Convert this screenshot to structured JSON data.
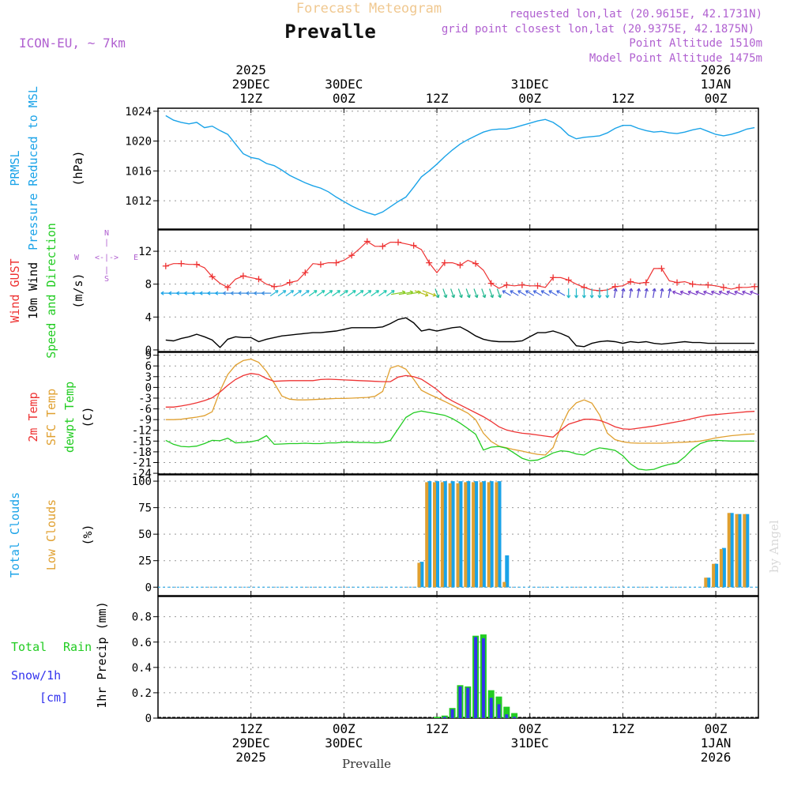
{
  "header": {
    "subtitle": "Forecast Meteogram",
    "station": "Prevalle",
    "model": "ICON-EU, ~ 7km",
    "requested": "requested lon,lat (20.9615E, 42.1731N)",
    "gridpoint": "grid point closest lon,lat (20.9375E, 42.1875N)",
    "altitude": "Point Altitude 1510m",
    "model_altitude": "Model Point Altitude 1475m",
    "footer_station": "Prevalle",
    "watermark": "by Angel"
  },
  "colors": {
    "pressure": "#1aa3e8",
    "gust": "#ee3333",
    "wind": "#000000",
    "temp": "#ee3333",
    "sfc": "#e0a030",
    "dew": "#22cc22",
    "total_cloud": "#1aa3e8",
    "low_cloud": "#e0a030",
    "rain": "#22cc22",
    "snow": "#3333ee",
    "label_purple": "#b060d0"
  },
  "time_axis": {
    "top_labels": [
      {
        "lines": [
          "2025",
          "29DEC",
          "12Z"
        ]
      },
      {
        "lines": [
          "30DEC",
          "00Z"
        ]
      },
      {
        "lines": [
          "12Z"
        ]
      },
      {
        "lines": [
          "31DEC",
          "00Z"
        ]
      },
      {
        "lines": [
          "12Z"
        ]
      },
      {
        "lines": [
          "2026",
          "1JAN",
          "00Z"
        ]
      }
    ],
    "bottom_labels": [
      {
        "lines": [
          "12Z",
          "29DEC",
          "2025"
        ]
      },
      {
        "lines": [
          "00Z",
          "30DEC"
        ]
      },
      {
        "lines": [
          "12Z"
        ]
      },
      {
        "lines": [
          "00Z",
          "31DEC"
        ]
      },
      {
        "lines": [
          "12Z"
        ]
      },
      {
        "lines": [
          "00Z",
          "1JAN",
          "2026"
        ]
      }
    ],
    "tick_hours": [
      12,
      24,
      36,
      48,
      60,
      72
    ]
  },
  "panel_labels": {
    "pressure": [
      "PRMSL",
      "Pressure Reduced to MSL",
      "(hPa)"
    ],
    "wind": [
      "Wind GUST",
      "10m Wind",
      "Speed and Direction",
      "(m/s)"
    ],
    "compass": {
      "n": "N",
      "s": "S",
      "w": "W",
      "e": "E",
      "arrows": "<-|->",
      "vbar": "|"
    },
    "temp": [
      "2m Temp",
      "SFC Temp",
      "dewpt Temp",
      "(C)"
    ],
    "cloud": [
      "Total Clouds",
      "Low Clouds",
      "(%)"
    ],
    "precip": [
      "Total",
      "Rain",
      "Snow/1h",
      "[cm]",
      "1hr Precip (mm)"
    ]
  },
  "chart_data": [
    {
      "type": "line",
      "title": "Pressure Reduced to MSL",
      "ylabel": "(hPa)",
      "ylim": [
        1008.2,
        1024.4
      ],
      "yticks": [
        "1012",
        "1016",
        "1020",
        "1024"
      ],
      "x_hours": [
        1,
        2,
        3,
        4,
        5,
        6,
        7,
        8,
        9,
        10,
        11,
        12,
        13,
        14,
        15,
        16,
        17,
        18,
        19,
        20,
        21,
        22,
        23,
        24,
        25,
        26,
        27,
        28,
        29,
        30,
        31,
        32,
        33,
        34,
        35,
        36,
        37,
        38,
        39,
        40,
        41,
        42,
        43,
        44,
        45,
        46,
        47,
        48,
        49,
        50,
        51,
        52,
        53,
        54,
        55,
        56,
        57,
        58,
        59,
        60,
        61,
        62,
        63,
        64,
        65,
        66,
        67,
        68,
        69,
        70,
        71,
        72,
        73,
        74,
        75,
        76,
        77
      ],
      "series": [
        {
          "name": "PRMSL",
          "values": [
            1023.4,
            1022.8,
            1022.5,
            1022.3,
            1022.5,
            1021.8,
            1022.0,
            1021.4,
            1020.9,
            1019.6,
            1018.3,
            1017.8,
            1017.6,
            1017.0,
            1016.7,
            1016.1,
            1015.4,
            1014.9,
            1014.4,
            1014.0,
            1013.7,
            1013.2,
            1012.5,
            1011.9,
            1011.3,
            1010.8,
            1010.4,
            1010.1,
            1010.5,
            1011.2,
            1011.9,
            1012.5,
            1013.8,
            1015.2,
            1016.0,
            1016.9,
            1017.9,
            1018.8,
            1019.6,
            1020.2,
            1020.7,
            1021.2,
            1021.5,
            1021.6,
            1021.6,
            1021.8,
            1022.1,
            1022.4,
            1022.7,
            1022.9,
            1022.5,
            1021.8,
            1020.8,
            1020.3,
            1020.5,
            1020.6,
            1020.7,
            1021.1,
            1021.7,
            1022.1,
            1022.1,
            1021.7,
            1021.4,
            1021.2,
            1021.3,
            1021.1,
            1021.0,
            1021.2,
            1021.5,
            1021.7,
            1021.3,
            1020.9,
            1020.7,
            1020.9,
            1021.2,
            1021.6,
            1021.8
          ]
        }
      ]
    },
    {
      "type": "line",
      "title": "Wind GUST / 10m Wind Speed and Direction",
      "ylabel": "(m/s)",
      "ylim": [
        -0.2,
        14.6
      ],
      "yticks": [
        "0",
        "4",
        "8",
        "12"
      ],
      "x_hours": [
        1,
        2,
        3,
        4,
        5,
        6,
        7,
        8,
        9,
        10,
        11,
        12,
        13,
        14,
        15,
        16,
        17,
        18,
        19,
        20,
        21,
        22,
        23,
        24,
        25,
        26,
        27,
        28,
        29,
        30,
        31,
        32,
        33,
        34,
        35,
        36,
        37,
        38,
        39,
        40,
        41,
        42,
        43,
        44,
        45,
        46,
        47,
        48,
        49,
        50,
        51,
        52,
        53,
        54,
        55,
        56,
        57,
        58,
        59,
        60,
        61,
        62,
        63,
        64,
        65,
        66,
        67,
        68,
        69,
        70,
        71,
        72,
        73,
        74,
        75,
        76,
        77
      ],
      "series": [
        {
          "name": "Wind GUST",
          "values": [
            10.2,
            10.5,
            10.5,
            10.4,
            10.4,
            10.0,
            8.9,
            8.1,
            7.6,
            8.6,
            9.0,
            8.8,
            8.6,
            8.0,
            7.7,
            7.8,
            8.2,
            8.4,
            9.4,
            10.5,
            10.4,
            10.6,
            10.6,
            10.9,
            11.5,
            12.3,
            13.2,
            12.6,
            12.6,
            13.1,
            13.1,
            12.9,
            12.7,
            12.2,
            10.6,
            9.4,
            10.6,
            10.6,
            10.3,
            10.9,
            10.5,
            9.7,
            8.1,
            7.5,
            7.9,
            7.8,
            7.9,
            7.8,
            7.8,
            7.6,
            8.8,
            8.8,
            8.5,
            8.0,
            7.6,
            7.3,
            7.2,
            7.3,
            7.7,
            7.8,
            8.3,
            8.1,
            8.2,
            9.9,
            9.9,
            8.4,
            8.2,
            8.3,
            8.0,
            7.9,
            7.9,
            7.8,
            7.6,
            7.4,
            7.6,
            7.6,
            7.7
          ]
        },
        {
          "name": "10m Wind",
          "values": [
            1.2,
            1.1,
            1.4,
            1.6,
            1.9,
            1.6,
            1.2,
            0.3,
            1.3,
            1.6,
            1.5,
            1.5,
            1.0,
            1.3,
            1.5,
            1.7,
            1.8,
            1.9,
            2.0,
            2.1,
            2.1,
            2.2,
            2.3,
            2.5,
            2.7,
            2.7,
            2.7,
            2.7,
            2.8,
            3.2,
            3.7,
            3.9,
            3.3,
            2.3,
            2.5,
            2.3,
            2.5,
            2.7,
            2.8,
            2.3,
            1.7,
            1.3,
            1.1,
            1.0,
            1.0,
            1.0,
            1.1,
            1.6,
            2.1,
            2.1,
            2.3,
            2.0,
            1.6,
            0.5,
            0.4,
            0.8,
            1.0,
            1.1,
            1.0,
            0.8,
            1.0,
            0.9,
            1.0,
            0.8,
            0.7,
            0.8,
            0.9,
            1.0,
            0.9,
            0.9,
            0.8,
            0.8,
            0.8,
            0.8,
            0.8,
            0.8,
            0.8
          ]
        }
      ]
    },
    {
      "type": "line",
      "title": "2m Temp / SFC Temp / dewpt Temp",
      "ylabel": "(C)",
      "ylim": [
        -24.2,
        9.8
      ],
      "yticks": [
        "-24",
        "-21",
        "-18",
        "-15",
        "-12",
        "-9",
        "-6",
        "-3",
        "0",
        "3",
        "6",
        "9"
      ],
      "x_hours": [
        1,
        2,
        3,
        4,
        5,
        6,
        7,
        8,
        9,
        10,
        11,
        12,
        13,
        14,
        15,
        16,
        17,
        18,
        19,
        20,
        21,
        22,
        23,
        24,
        25,
        26,
        27,
        28,
        29,
        30,
        31,
        32,
        33,
        34,
        35,
        36,
        37,
        38,
        39,
        40,
        41,
        42,
        43,
        44,
        45,
        46,
        47,
        48,
        49,
        50,
        51,
        52,
        53,
        54,
        55,
        56,
        57,
        58,
        59,
        60,
        61,
        62,
        63,
        64,
        65,
        66,
        67,
        68,
        69,
        70,
        71,
        72,
        73,
        74,
        75,
        76,
        77
      ],
      "series": [
        {
          "name": "2m Temp",
          "values": [
            -5.5,
            -5.5,
            -5.2,
            -4.8,
            -4.3,
            -3.7,
            -2.9,
            -1.3,
            0.6,
            2.2,
            3.3,
            3.9,
            3.6,
            2.5,
            1.7,
            1.8,
            1.9,
            1.9,
            1.9,
            1.9,
            2.2,
            2.3,
            2.2,
            2.1,
            2.0,
            1.9,
            1.8,
            1.7,
            1.6,
            1.6,
            2.9,
            3.3,
            3.0,
            2.3,
            0.9,
            -0.6,
            -2.5,
            -3.8,
            -4.9,
            -6.0,
            -7.1,
            -8.2,
            -9.5,
            -11.0,
            -11.9,
            -12.4,
            -12.8,
            -13.0,
            -13.3,
            -13.6,
            -13.9,
            -11.9,
            -10.3,
            -9.6,
            -8.9,
            -8.9,
            -9.2,
            -10.0,
            -11.0,
            -11.6,
            -11.7,
            -11.4,
            -11.1,
            -10.8,
            -10.4,
            -10.0,
            -9.6,
            -9.2,
            -8.7,
            -8.2,
            -7.8,
            -7.6,
            -7.4,
            -7.2,
            -7.0,
            -6.8,
            -6.7
          ]
        },
        {
          "name": "SFC Temp",
          "values": [
            -9.0,
            -9.0,
            -8.9,
            -8.6,
            -8.3,
            -7.9,
            -6.8,
            -1.0,
            3.6,
            6.2,
            7.5,
            7.9,
            7.0,
            4.5,
            1.2,
            -2.4,
            -3.3,
            -3.5,
            -3.5,
            -3.4,
            -3.3,
            -3.2,
            -3.1,
            -3.1,
            -3.0,
            -2.9,
            -2.8,
            -2.5,
            -1.1,
            5.4,
            6.1,
            5.1,
            2.3,
            -0.8,
            -1.9,
            -2.9,
            -3.9,
            -5.0,
            -6.1,
            -7.2,
            -9.0,
            -12.8,
            -15.1,
            -16.4,
            -16.9,
            -17.4,
            -17.8,
            -18.3,
            -18.7,
            -18.9,
            -16.8,
            -11.1,
            -6.6,
            -4.3,
            -3.5,
            -4.4,
            -7.7,
            -12.8,
            -14.6,
            -15.2,
            -15.5,
            -15.6,
            -15.6,
            -15.6,
            -15.6,
            -15.5,
            -15.4,
            -15.3,
            -15.2,
            -15.0,
            -14.6,
            -14.1,
            -13.8,
            -13.5,
            -13.3,
            -13.1,
            -13.0
          ]
        },
        {
          "name": "dewpt Temp",
          "values": [
            -14.8,
            -15.9,
            -16.5,
            -16.6,
            -16.4,
            -15.7,
            -14.8,
            -14.9,
            -14.2,
            -15.5,
            -15.4,
            -15.2,
            -14.7,
            -13.5,
            -15.9,
            -15.8,
            -15.7,
            -15.7,
            -15.6,
            -15.7,
            -15.7,
            -15.5,
            -15.5,
            -15.3,
            -15.3,
            -15.4,
            -15.4,
            -15.5,
            -15.4,
            -14.8,
            -11.6,
            -8.4,
            -7.1,
            -6.6,
            -7.0,
            -7.4,
            -7.8,
            -8.7,
            -10.0,
            -11.5,
            -13.1,
            -17.5,
            -16.7,
            -16.5,
            -17.0,
            -18.4,
            -19.8,
            -20.5,
            -20.3,
            -19.4,
            -18.3,
            -17.7,
            -17.9,
            -18.6,
            -18.9,
            -17.6,
            -16.9,
            -17.2,
            -17.6,
            -19.1,
            -21.4,
            -22.8,
            -23.1,
            -22.9,
            -22.1,
            -21.5,
            -21.1,
            -19.4,
            -17.2,
            -15.7,
            -15.0,
            -14.8,
            -14.9,
            -15.0,
            -15.0,
            -15.0,
            -15.0
          ]
        }
      ]
    },
    {
      "type": "bar",
      "title": "Total Clouds / Low Clouds",
      "ylabel": "(%)",
      "ylim": [
        -8,
        106
      ],
      "yticks": [
        "0",
        "25",
        "50",
        "75",
        "100"
      ],
      "x_hours": [
        34,
        35,
        36,
        37,
        38,
        39,
        40,
        41,
        42,
        43,
        44,
        45,
        46,
        71,
        72,
        73,
        74,
        75,
        76
      ],
      "series": [
        {
          "name": "Total Clouds",
          "values": [
            24,
            100,
            100,
            100,
            100,
            100,
            100,
            100,
            100,
            100,
            100,
            30,
            0,
            9,
            22,
            37,
            70,
            69,
            69
          ]
        },
        {
          "name": "Low Clouds",
          "values": [
            23,
            99,
            99,
            99,
            98,
            98,
            99,
            99,
            99,
            99,
            99,
            5,
            0,
            9,
            22,
            36,
            70,
            69,
            69
          ]
        }
      ]
    },
    {
      "type": "bar",
      "title": "1hr Precip (mm)",
      "ylabel": "1hr Precip (mm)",
      "ylim": [
        0,
        0.96
      ],
      "yticks": [
        "0",
        "0.2",
        "0.4",
        "0.6",
        "0.8"
      ],
      "x_hours": [
        36,
        37,
        38,
        39,
        40,
        41,
        42,
        43,
        44,
        45,
        46
      ],
      "series": [
        {
          "name": "Total Rain",
          "values": [
            0.01,
            0.02,
            0.08,
            0.26,
            0.25,
            0.65,
            0.66,
            0.22,
            0.17,
            0.09,
            0.04
          ]
        },
        {
          "name": "Snow/1h",
          "values": [
            0.0,
            0.01,
            0.07,
            0.25,
            0.24,
            0.64,
            0.63,
            0.16,
            0.11,
            0.03,
            0.01
          ]
        }
      ]
    }
  ]
}
